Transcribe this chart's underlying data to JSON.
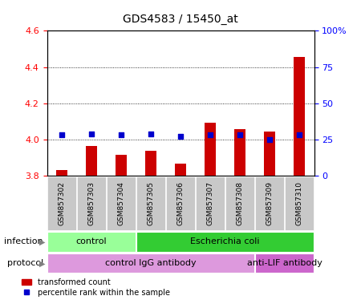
{
  "title": "GDS4583 / 15450_at",
  "samples": [
    "GSM857302",
    "GSM857303",
    "GSM857304",
    "GSM857305",
    "GSM857306",
    "GSM857307",
    "GSM857308",
    "GSM857309",
    "GSM857310"
  ],
  "transformed_count": [
    3.83,
    3.965,
    3.915,
    3.935,
    3.865,
    4.09,
    4.055,
    4.045,
    4.455
  ],
  "percentile_rank": [
    28,
    29,
    28,
    29,
    27,
    28,
    28,
    25,
    28
  ],
  "ylim_left": [
    3.8,
    4.6
  ],
  "ylim_right": [
    0,
    100
  ],
  "yticks_left": [
    3.8,
    4.0,
    4.2,
    4.4,
    4.6
  ],
  "yticks_right": [
    0,
    25,
    50,
    75,
    100
  ],
  "ytick_labels_right": [
    "0",
    "25",
    "50",
    "75",
    "100%"
  ],
  "bar_color": "#cc0000",
  "dot_color": "#0000cc",
  "bar_width": 0.4,
  "infection_groups": [
    {
      "label": "control",
      "start": 0,
      "end": 3,
      "color": "#99ff99"
    },
    {
      "label": "Escherichia coli",
      "start": 3,
      "end": 9,
      "color": "#33cc33"
    }
  ],
  "protocol_groups": [
    {
      "label": "control IgG antibody",
      "start": 0,
      "end": 7,
      "color": "#dd99dd"
    },
    {
      "label": "anti-LIF antibody",
      "start": 7,
      "end": 9,
      "color": "#cc66cc"
    }
  ],
  "legend_bar_label": "transformed count",
  "legend_dot_label": "percentile rank within the sample",
  "infection_label": "infection",
  "protocol_label": "protocol",
  "background_color": "#f0f0f0",
  "plot_bg_color": "#ffffff",
  "grid_color": "#000000"
}
